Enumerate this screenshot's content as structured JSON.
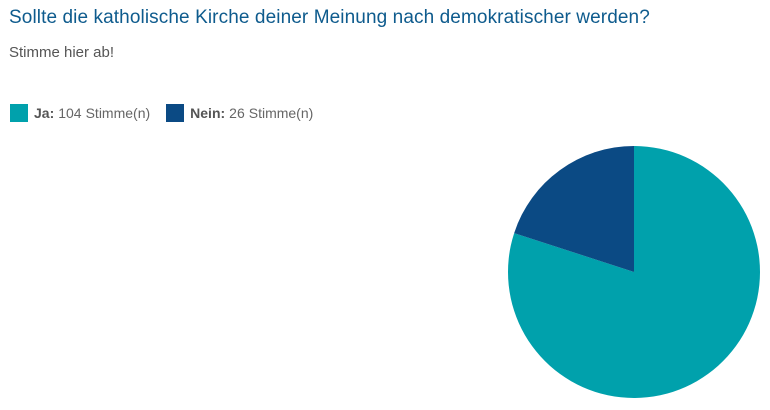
{
  "poll": {
    "question": "Sollte die katholische Kirche deiner Meinung nach demokratischer werden?",
    "prompt": "Stimme hier ab!",
    "unit": "Stimme(n)"
  },
  "legend": [
    {
      "label": "Ja:",
      "value": "104",
      "color": "#00a1ac"
    },
    {
      "label": "Nein:",
      "value": "26",
      "color": "#0b4a84"
    }
  ],
  "chart_data": {
    "type": "pie",
    "categories": [
      "Ja",
      "Nein"
    ],
    "values": [
      104,
      26
    ],
    "colors": [
      "#00a1ac",
      "#0b4a84"
    ],
    "title": "Sollte die katholische Kirche deiner Meinung nach demokratischer werden?",
    "subtitle": "Stimme hier ab!",
    "legend_position": "top-left"
  }
}
